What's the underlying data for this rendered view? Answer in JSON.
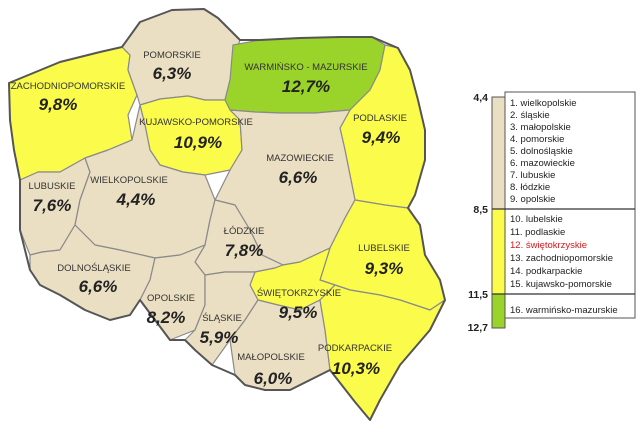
{
  "colors": {
    "low": "#ebdfc3",
    "mid": "#fbfb4c",
    "high": "#9ad32a",
    "highlight_text": "#d81818"
  },
  "regions": [
    {
      "id": "pomorskie",
      "name": "POMORSKIE",
      "value": "6,3%",
      "class": "low"
    },
    {
      "id": "warminsko-mazurskie",
      "name": "WARMIŃSKO - MAZURSKIE",
      "value": "12,7%",
      "class": "high"
    },
    {
      "id": "zachodniopomorskie",
      "name": "ZACHODNIOPOMORSKIE",
      "value": "9,8%",
      "class": "mid"
    },
    {
      "id": "podlaskie",
      "name": "PODLASKIE",
      "value": "9,4%",
      "class": "mid"
    },
    {
      "id": "kujawsko-pomorskie",
      "name": "KUJAWSKO-POMORSKIE",
      "value": "10,9%",
      "class": "mid"
    },
    {
      "id": "mazowieckie",
      "name": "MAZOWIECKIE",
      "value": "6,6%",
      "class": "low"
    },
    {
      "id": "lubuskie",
      "name": "LUBUSKIE",
      "value": "7,6%",
      "class": "low"
    },
    {
      "id": "wielkopolskie",
      "name": "WIELKOPOLSKIE",
      "value": "4,4%",
      "class": "low"
    },
    {
      "id": "lodzkie",
      "name": "ŁÓDZKIE",
      "value": "7,8%",
      "class": "low"
    },
    {
      "id": "lubelskie",
      "name": "LUBELSKIE",
      "value": "9,3%",
      "class": "mid"
    },
    {
      "id": "dolnoslaskie",
      "name": "DOLNOŚLĄSKIE",
      "value": "6,6%",
      "class": "low"
    },
    {
      "id": "opolskie",
      "name": "OPOLSKIE",
      "value": "8,2%",
      "class": "low"
    },
    {
      "id": "swietokrzyskie",
      "name": "ŚWIĘTOKRZYSKIE",
      "value": "9,5%",
      "class": "mid"
    },
    {
      "id": "slaskie",
      "name": "ŚLĄSKIE",
      "value": "5,9%",
      "class": "low"
    },
    {
      "id": "malopolskie",
      "name": "MAŁOPOLSKIE",
      "value": "6,0%",
      "class": "low"
    },
    {
      "id": "podkarpackie",
      "name": "PODKARPACKIE",
      "value": "10,3%",
      "class": "mid"
    }
  ],
  "legend": {
    "scale": [
      "4,4",
      "8,5",
      "11,5",
      "12,7"
    ],
    "groups": [
      {
        "class": "low",
        "items": [
          "1. wielkopolskie",
          "2. śląskie",
          "3. małopolskie",
          "4. pomorskie",
          "5. dolnośląskie",
          "6. mazowieckie",
          "7. lubuskie",
          "8. łódzkie",
          "9. opolskie"
        ]
      },
      {
        "class": "mid",
        "items": [
          "10. lubelskie",
          "11. podlaskie",
          "12. świętokrzyskie",
          "13. zachodniopomorskie",
          "14. podkarpackie",
          "15. kujawsko-pomorskie"
        ],
        "highlight_index": 2
      },
      {
        "class": "high",
        "items": [
          "16. warmińsko-mazurskie"
        ]
      }
    ]
  }
}
